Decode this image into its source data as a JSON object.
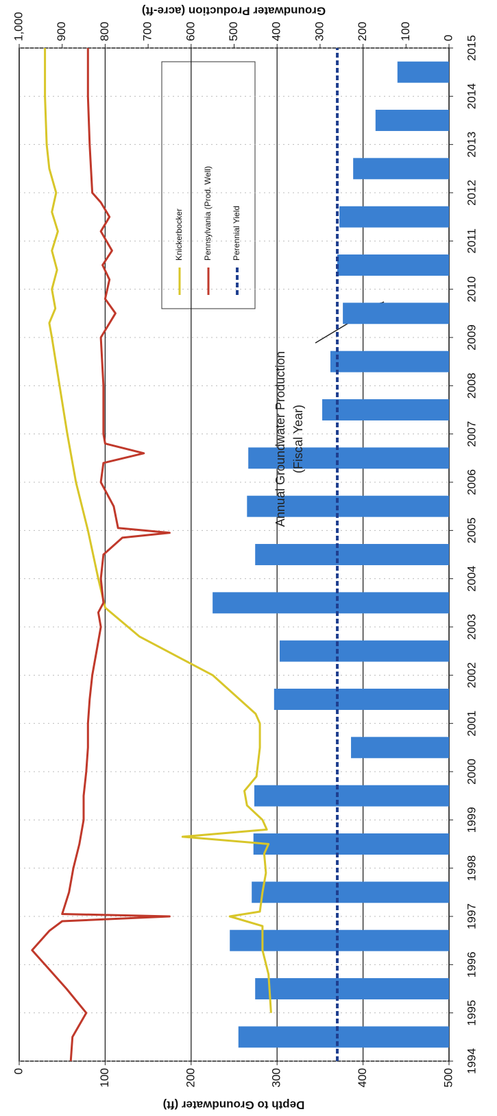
{
  "chart_data": {
    "type": "line",
    "y_title": "Depth to Groundwater (ft)",
    "y2_title": "Groundwater Production (acre-ft)",
    "xlim": [
      1994,
      2015
    ],
    "xticks": [
      1994,
      1995,
      1996,
      1997,
      1998,
      1999,
      2000,
      2001,
      2002,
      2003,
      2004,
      2005,
      2006,
      2007,
      2008,
      2009,
      2010,
      2011,
      2012,
      2013,
      2014,
      2015
    ],
    "ylim": [
      0,
      500
    ],
    "y_inverted": true,
    "yticks": [
      0,
      100,
      200,
      300,
      400,
      500
    ],
    "y2lim": [
      0,
      1000
    ],
    "y2ticks": [
      0,
      100,
      200,
      300,
      400,
      500,
      600,
      700,
      800,
      900,
      {
        "value": 1000,
        "label": "1,000"
      }
    ],
    "grid": true,
    "annotation": [
      "Annual Groundwater Production",
      "(Fiscal Year)"
    ],
    "series": [
      {
        "name": "Knickerbocker",
        "type": "line",
        "color": "#d8c62a",
        "axis": "y",
        "x": [
          1995.0,
          1995.8,
          1996.3,
          1996.8,
          1997.0,
          1997.1,
          1997.5,
          1997.9,
          1998.3,
          1998.5,
          1998.65,
          1998.8,
          1999.0,
          1999.3,
          1999.6,
          1999.9,
          2000.5,
          2001.0,
          2001.2,
          2002.0,
          2002.8,
          2003.4,
          2004.0,
          2005.0,
          2006.0,
          2007.0,
          2008.0,
          2009.0,
          2009.3,
          2009.6,
          2010.0,
          2010.4,
          2010.8,
          2011.2,
          2011.6,
          2012.0,
          2012.5,
          2013.0,
          2014.0,
          2015.0
        ],
        "values": [
          293,
          290,
          283,
          283,
          245,
          280,
          283,
          287,
          285,
          290,
          190,
          288,
          283,
          265,
          262,
          276,
          280,
          280,
          275,
          225,
          140,
          100,
          92,
          80,
          66,
          56,
          47,
          38,
          35,
          42,
          38,
          44,
          38,
          45,
          38,
          43,
          35,
          32,
          30,
          30
        ]
      },
      {
        "name": "Pennsylvania (Prod. Well)",
        "type": "line",
        "color": "#c0392b",
        "axis": "y",
        "x": [
          1994.0,
          1994.5,
          1995.0,
          1995.5,
          1996.0,
          1996.3,
          1996.7,
          1996.9,
          1997.0,
          1997.05,
          1997.5,
          1998.0,
          1998.5,
          1999.0,
          1999.5,
          2000.0,
          2000.5,
          2001.0,
          2001.5,
          2002.0,
          2002.5,
          2003.0,
          2003.3,
          2003.5,
          2004.0,
          2004.5,
          2004.85,
          2004.95,
          2005.05,
          2005.5,
          2006.0,
          2006.4,
          2006.6,
          2006.8,
          2007.0,
          2008.0,
          2009.0,
          2009.5,
          2009.8,
          2010.2,
          2010.5,
          2010.8,
          2011.2,
          2011.5,
          2011.8,
          2012.0,
          2013.0,
          2014.0,
          2015.0
        ],
        "values": [
          60,
          62,
          78,
          55,
          30,
          15,
          35,
          50,
          175,
          50,
          58,
          63,
          70,
          75,
          75,
          78,
          80,
          80,
          82,
          85,
          90,
          95,
          92,
          98,
          95,
          98,
          120,
          175,
          115,
          110,
          95,
          98,
          145,
          100,
          98,
          98,
          95,
          112,
          100,
          105,
          97,
          108,
          95,
          105,
          95,
          85,
          82,
          80,
          80
        ]
      },
      {
        "name": "Perennial Yield",
        "type": "line",
        "dashed": true,
        "color": "#1f3f8f",
        "axis": "y2",
        "x": [
          1994,
          2015
        ],
        "values": [
          260,
          260
        ]
      },
      {
        "type": "bar",
        "color": "#3a80d2",
        "axis": "y2",
        "x": [
          1994,
          1995,
          1996,
          1997,
          1998,
          1999,
          2000,
          2001,
          2002,
          2003,
          2004,
          2005,
          2006,
          2007,
          2008,
          2009,
          2010,
          2011,
          2012,
          2013,
          2014
        ],
        "values": [
          490,
          451,
          510,
          459,
          455,
          453,
          228,
          407,
          394,
          550,
          451,
          470,
          467,
          295,
          276,
          247,
          260,
          255,
          223,
          171,
          120
        ]
      }
    ]
  }
}
